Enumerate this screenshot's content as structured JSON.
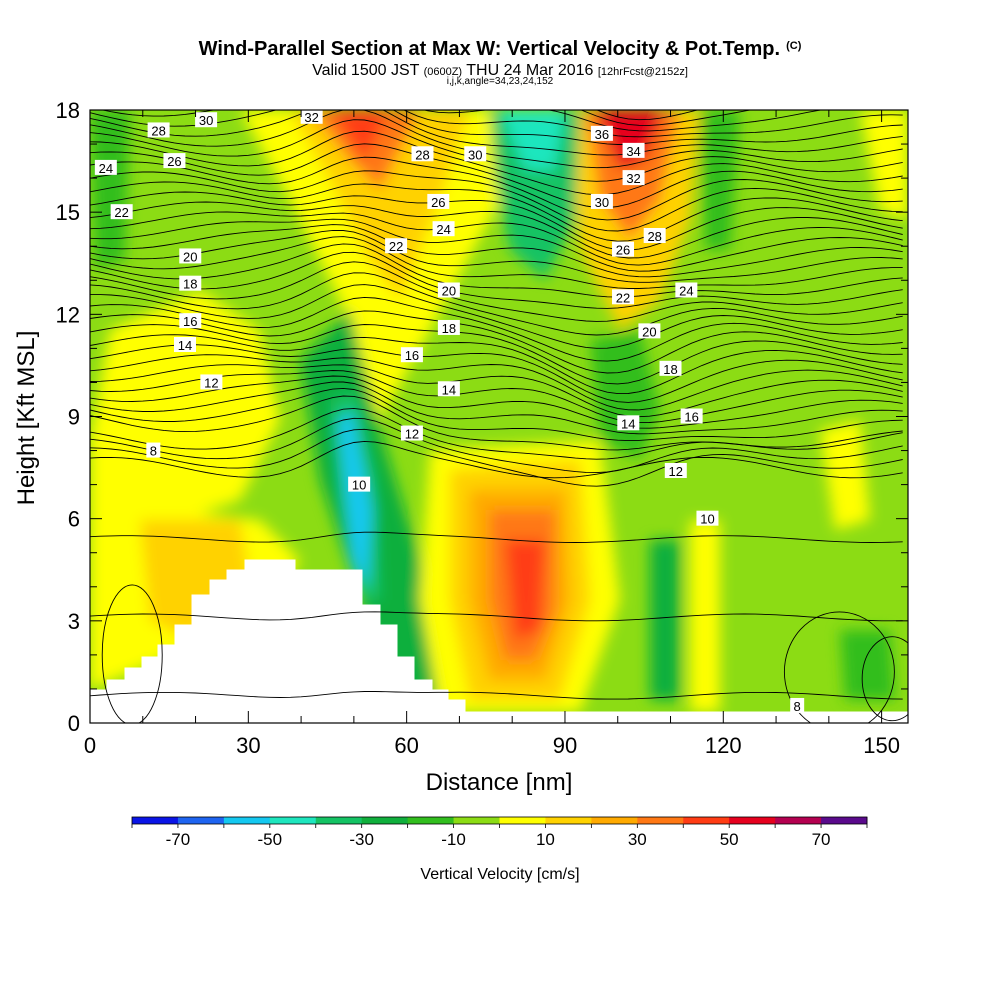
{
  "title": "Wind-Parallel Section at Max W: Vertical Velocity & Pot.Temp.",
  "title_mark": "(C)",
  "subtitle_valid": "Valid 1500 JST",
  "subtitle_utc": "(0600Z)",
  "subtitle_date": "THU 24 Mar 2016",
  "subtitle_fcst": "[12hrFcst@2152z]",
  "params": "i,j,k,angle=34,23,24,152",
  "chart_data": {
    "type": "heatmap",
    "xlabel": "Distance [nm]",
    "ylabel": "Height [Kft MSL]",
    "xlim": [
      0,
      155
    ],
    "ylim": [
      0,
      18
    ],
    "x_ticks": [
      "0",
      "30",
      "60",
      "90",
      "120",
      "150"
    ],
    "y_ticks": [
      "0",
      "3",
      "6",
      "9",
      "12",
      "15",
      "18"
    ],
    "colorbar": {
      "label": "Vertical Velocity [cm/s]",
      "tick_labels": [
        "-70",
        "-50",
        "-30",
        "-10",
        "10",
        "30",
        "50",
        "70"
      ],
      "bins": [
        -80,
        -70,
        -60,
        -50,
        -40,
        -30,
        -20,
        -10,
        0,
        10,
        20,
        30,
        40,
        50,
        60,
        70,
        80
      ],
      "colors": [
        "#0a14e6",
        "#1e64f0",
        "#14c8f0",
        "#1ee6be",
        "#14c364",
        "#10af3c",
        "#32be1e",
        "#8cdc14",
        "#ffff00",
        "#ffd200",
        "#ffaa00",
        "#ff7814",
        "#ff3c14",
        "#e6001e",
        "#b40050",
        "#5a0a8c"
      ]
    },
    "theta_contour_labels": [
      {
        "text": "8",
        "x": 12,
        "y": 8.0
      },
      {
        "text": "8",
        "x": 134,
        "y": 0.5
      },
      {
        "text": "10",
        "x": 51,
        "y": 7.0
      },
      {
        "text": "10",
        "x": 117,
        "y": 6.0
      },
      {
        "text": "12",
        "x": 23,
        "y": 10.0
      },
      {
        "text": "12",
        "x": 61,
        "y": 8.5
      },
      {
        "text": "12",
        "x": 111,
        "y": 7.4
      },
      {
        "text": "14",
        "x": 18,
        "y": 11.1
      },
      {
        "text": "14",
        "x": 68,
        "y": 9.8
      },
      {
        "text": "14",
        "x": 102,
        "y": 8.8
      },
      {
        "text": "16",
        "x": 19,
        "y": 11.8
      },
      {
        "text": "16",
        "x": 61,
        "y": 10.8
      },
      {
        "text": "16",
        "x": 114,
        "y": 9.0
      },
      {
        "text": "18",
        "x": 19,
        "y": 12.9
      },
      {
        "text": "18",
        "x": 68,
        "y": 11.6
      },
      {
        "text": "18",
        "x": 110,
        "y": 10.4
      },
      {
        "text": "20",
        "x": 19,
        "y": 13.7
      },
      {
        "text": "20",
        "x": 68,
        "y": 12.7
      },
      {
        "text": "20",
        "x": 106,
        "y": 11.5
      },
      {
        "text": "22",
        "x": 6,
        "y": 15.0
      },
      {
        "text": "22",
        "x": 58,
        "y": 14.0
      },
      {
        "text": "22",
        "x": 101,
        "y": 12.5
      },
      {
        "text": "24",
        "x": 3,
        "y": 16.3
      },
      {
        "text": "24",
        "x": 67,
        "y": 14.5
      },
      {
        "text": "24",
        "x": 113,
        "y": 12.7
      },
      {
        "text": "26",
        "x": 16,
        "y": 16.5
      },
      {
        "text": "26",
        "x": 66,
        "y": 15.3
      },
      {
        "text": "26",
        "x": 101,
        "y": 13.9
      },
      {
        "text": "28",
        "x": 13,
        "y": 17.4
      },
      {
        "text": "28",
        "x": 63,
        "y": 16.7
      },
      {
        "text": "28",
        "x": 107,
        "y": 14.3
      },
      {
        "text": "30",
        "x": 22,
        "y": 17.7
      },
      {
        "text": "30",
        "x": 73,
        "y": 16.7
      },
      {
        "text": "30",
        "x": 97,
        "y": 15.3
      },
      {
        "text": "32",
        "x": 42,
        "y": 17.8
      },
      {
        "text": "32",
        "x": 103,
        "y": 16.0
      },
      {
        "text": "34",
        "x": 103,
        "y": 16.8
      },
      {
        "text": "36",
        "x": 97,
        "y": 17.3
      }
    ]
  }
}
